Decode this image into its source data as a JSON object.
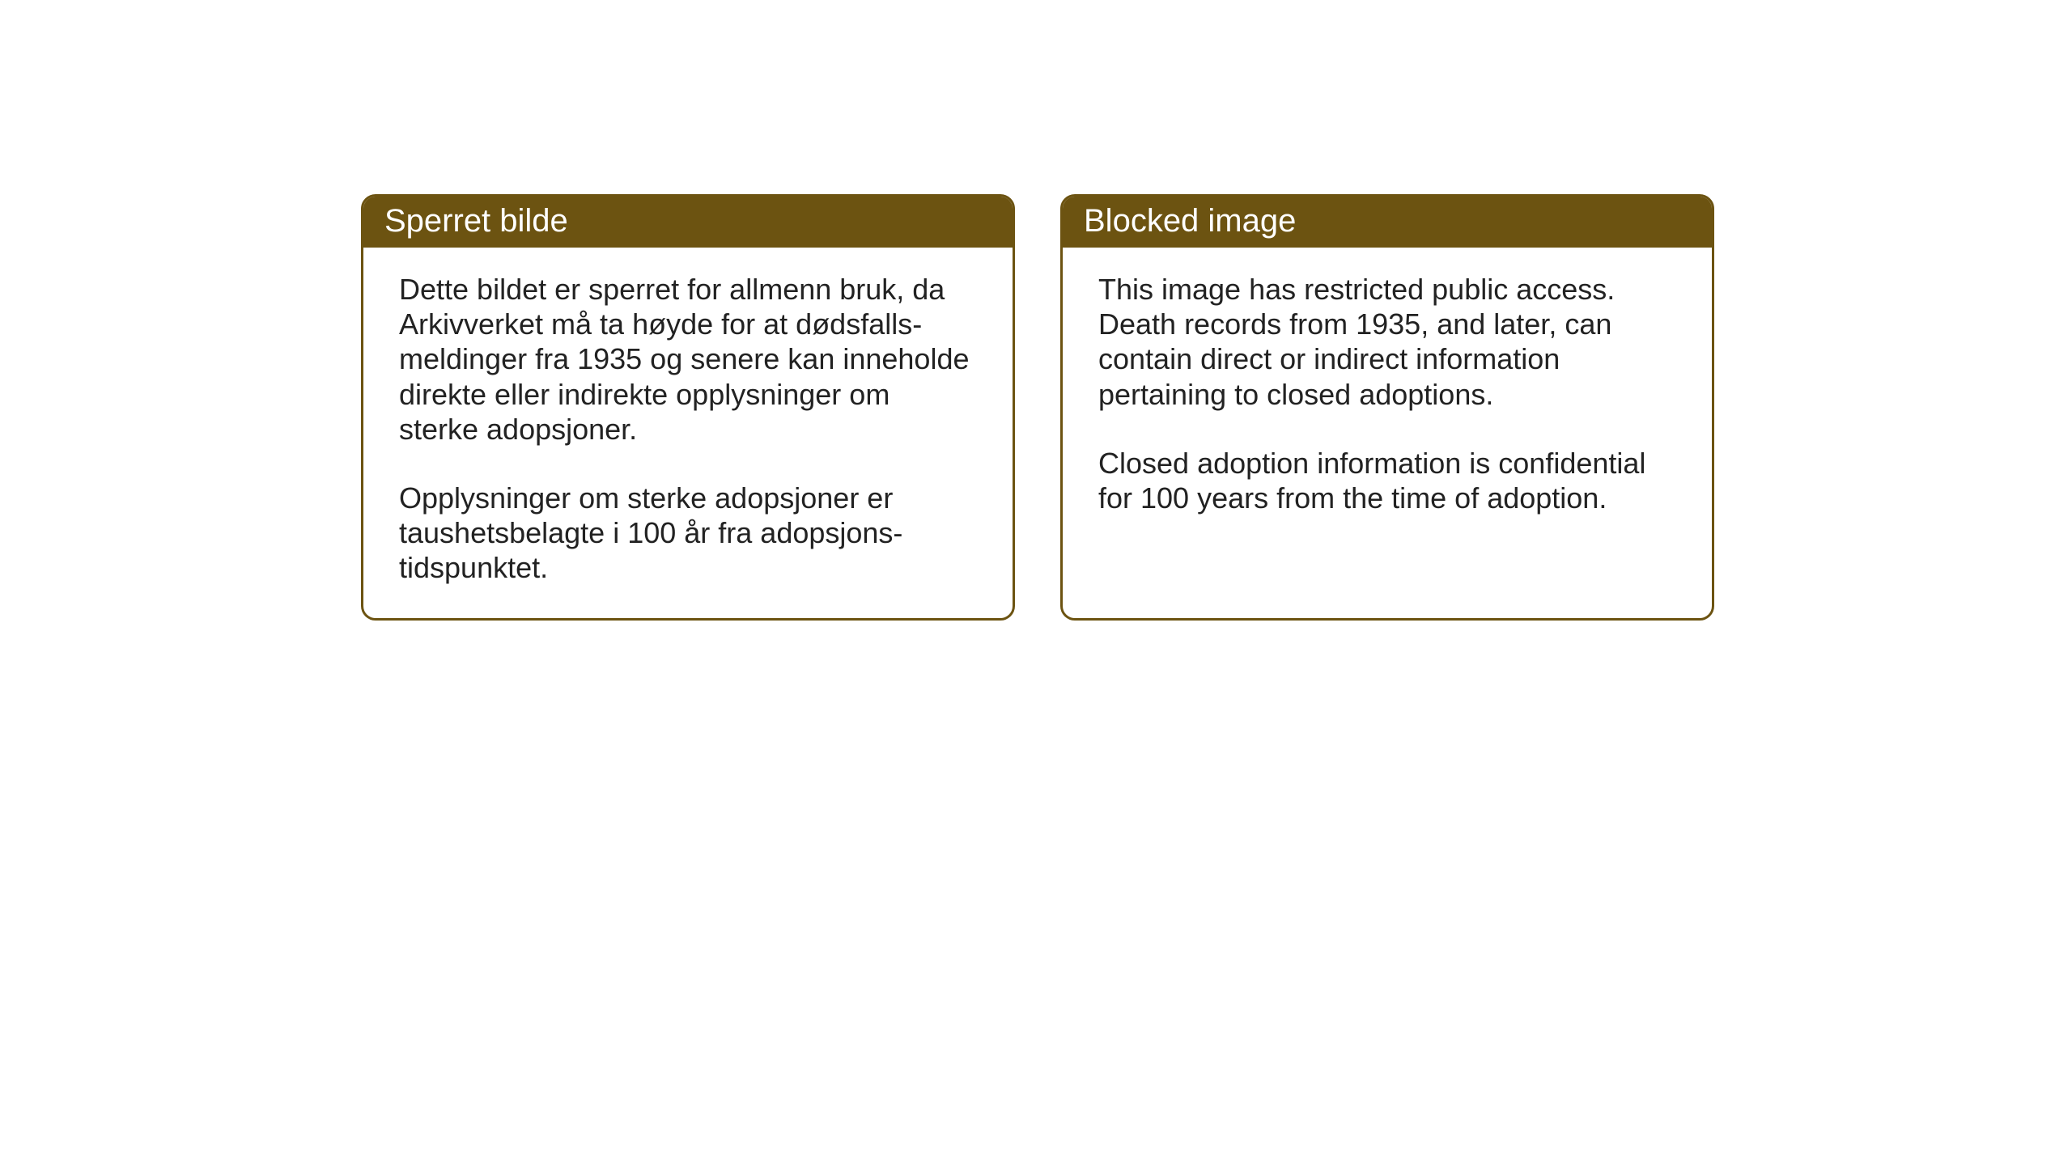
{
  "cards": {
    "norwegian": {
      "title": "Sperret bilde",
      "paragraph1": "Dette bildet er sperret for allmenn bruk, da Arkivverket må ta høyde for at dødsfalls-meldinger fra 1935 og senere kan inneholde direkte eller indirekte opplysninger om sterke adopsjoner.",
      "paragraph2": "Opplysninger om sterke adopsjoner er taushetsbelagte i 100 år fra adopsjons-tidspunktet."
    },
    "english": {
      "title": "Blocked image",
      "paragraph1": "This image has restricted public access. Death records from 1935, and later, can contain direct or indirect information pertaining to closed adoptions.",
      "paragraph2": "Closed adoption information is confidential for 100 years from the time of adoption."
    }
  },
  "styling": {
    "header_background": "#6c5311",
    "header_text_color": "#ffffff",
    "border_color": "#6c5311",
    "body_text_color": "#222222",
    "background_color": "#ffffff",
    "border_radius": 18,
    "border_width": 3,
    "header_fontsize": 40,
    "body_fontsize": 36
  }
}
